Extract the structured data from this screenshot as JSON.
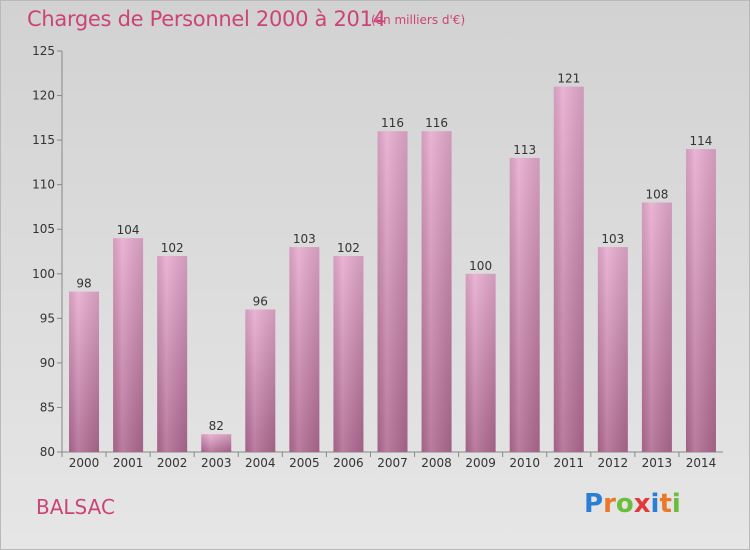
{
  "header": {
    "title": "Charges de Personnel 2000 à 2014",
    "subtitle": "(en milliers d'€)"
  },
  "footer": {
    "place": "BALSAC",
    "logo_text": "Proxiti",
    "logo_colors": [
      "#2a7fd4",
      "#e8792a",
      "#6bbd3b",
      "#e03a3a",
      "#2a7fd4",
      "#e8792a",
      "#6bbd3b"
    ]
  },
  "colors": {
    "bar_top": "#e7abcf",
    "bar_bottom": "#b06a92",
    "text": "#333333",
    "accent": "#cc4477"
  },
  "chart_data": {
    "type": "bar",
    "categories": [
      "2000",
      "2001",
      "2002",
      "2003",
      "2004",
      "2005",
      "2006",
      "2007",
      "2008",
      "2009",
      "2010",
      "2011",
      "2012",
      "2013",
      "2014"
    ],
    "values": [
      98,
      104,
      102,
      82,
      96,
      103,
      102,
      116,
      116,
      100,
      113,
      121,
      103,
      108,
      114
    ],
    "ylim": [
      80,
      125
    ],
    "yticks": [
      80,
      85,
      90,
      95,
      100,
      105,
      110,
      115,
      120,
      125
    ],
    "grid": false,
    "data_labels": true
  }
}
